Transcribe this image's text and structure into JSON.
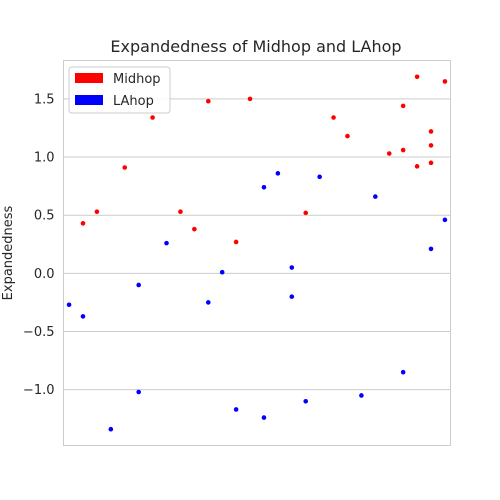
{
  "chart_data": {
    "type": "scatter",
    "title": "Expandedness of Midhop and LAhop",
    "xlabel": "",
    "ylabel": "Expandedness",
    "ylim": [
      -1.48,
      1.83
    ],
    "yticks": [
      -1.0,
      -0.5,
      0.0,
      0.5,
      1.0,
      1.5
    ],
    "ytick_labels": [
      "−1.0",
      "−0.5",
      "0.0",
      "0.5",
      "1.0",
      "1.5"
    ],
    "xlim": [
      -0.4,
      27.4
    ],
    "grid": "horizontal",
    "legend_position": "top-left",
    "series": [
      {
        "name": "Midhop",
        "color": "#ff0000",
        "points": [
          [
            1,
            0.43
          ],
          [
            2,
            0.53
          ],
          [
            4,
            0.91
          ],
          [
            6,
            1.34
          ],
          [
            8,
            0.53
          ],
          [
            9,
            0.38
          ],
          [
            10,
            1.48
          ],
          [
            12,
            0.27
          ],
          [
            13,
            1.5
          ],
          [
            17,
            0.52
          ],
          [
            19,
            1.34
          ],
          [
            20,
            1.18
          ],
          [
            23,
            1.03
          ],
          [
            24,
            1.44
          ],
          [
            24,
            1.06
          ],
          [
            25,
            0.92
          ],
          [
            25,
            1.69
          ],
          [
            26,
            1.22
          ],
          [
            26,
            1.1
          ],
          [
            26,
            0.95
          ],
          [
            27,
            1.65
          ]
        ]
      },
      {
        "name": "LAhop",
        "color": "#0000ff",
        "points": [
          [
            0,
            -0.27
          ],
          [
            1,
            -0.37
          ],
          [
            3,
            -1.34
          ],
          [
            5,
            -0.1
          ],
          [
            5,
            -1.02
          ],
          [
            7,
            0.26
          ],
          [
            10,
            -0.25
          ],
          [
            11,
            0.01
          ],
          [
            12,
            -1.17
          ],
          [
            14,
            0.74
          ],
          [
            14,
            -1.24
          ],
          [
            15,
            0.86
          ],
          [
            16,
            0.05
          ],
          [
            16,
            -0.2
          ],
          [
            17,
            -1.1
          ],
          [
            18,
            0.83
          ],
          [
            21,
            -1.05
          ],
          [
            22,
            0.66
          ],
          [
            24,
            -0.85
          ],
          [
            26,
            0.21
          ],
          [
            27,
            0.46
          ]
        ]
      }
    ]
  }
}
